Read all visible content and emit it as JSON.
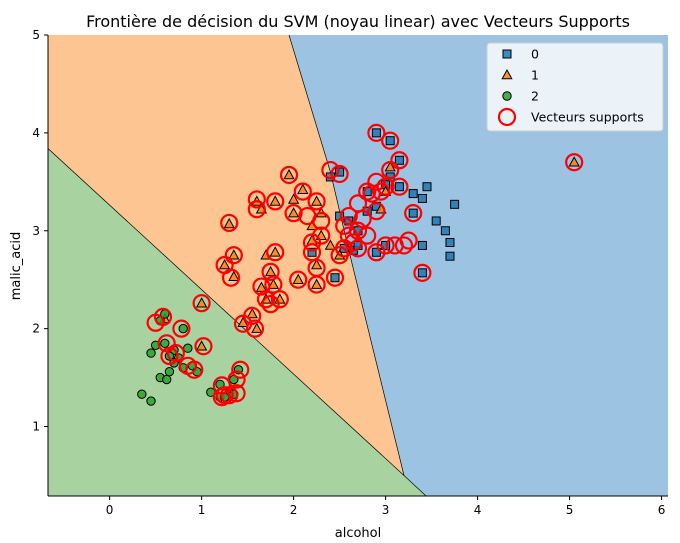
{
  "chart_data": {
    "type": "scatter",
    "title": "Frontière de décision du SVM (noyau linear) avec Vecteurs Supports",
    "xlabel": "alcohol",
    "ylabel": "malic_acid",
    "xlim": [
      -0.67,
      6.07
    ],
    "ylim": [
      0.29,
      5.0
    ],
    "xticks": [
      0,
      1,
      2,
      3,
      4,
      5,
      6
    ],
    "yticks": [
      1,
      2,
      3,
      4,
      5
    ],
    "x_tick_labels": [
      "0",
      "1",
      "2",
      "3",
      "4",
      "5",
      "6"
    ],
    "y_tick_labels": [
      "1",
      "2",
      "3",
      "4",
      "5"
    ],
    "legend_position": "top-right",
    "regions": [
      {
        "class": "0",
        "color": "#9dc3e2",
        "polygon": [
          [
            1.95,
            5.0
          ],
          [
            6.07,
            5.0
          ],
          [
            6.07,
            0.29
          ],
          [
            3.44,
            0.29
          ],
          [
            3.2,
            0.5
          ],
          [
            2.6,
            2.8
          ],
          [
            2.4,
            3.6
          ]
        ]
      },
      {
        "class": "1",
        "color": "#fdc591",
        "polygon": [
          [
            -0.67,
            5.0
          ],
          [
            1.95,
            5.0
          ],
          [
            2.4,
            3.6
          ],
          [
            2.6,
            2.8
          ],
          [
            3.2,
            0.5
          ],
          [
            -0.67,
            3.84
          ]
        ]
      },
      {
        "class": "2",
        "color": "#a8d3a0",
        "polygon": [
          [
            -0.67,
            3.84
          ],
          [
            3.2,
            0.5
          ],
          [
            3.44,
            0.29
          ],
          [
            -0.67,
            0.29
          ]
        ]
      }
    ],
    "boundaries": [
      [
        [
          1.95,
          5.0
        ],
        [
          2.4,
          3.6
        ],
        [
          2.6,
          2.8
        ],
        [
          3.2,
          0.5
        ],
        [
          3.44,
          0.29
        ]
      ],
      [
        [
          -0.67,
          3.84
        ],
        [
          3.2,
          0.5
        ]
      ]
    ],
    "series": [
      {
        "name": "0",
        "marker": "square",
        "color": "#1f77b4",
        "points": [
          [
            2.4,
            3.55
          ],
          [
            2.5,
            3.6
          ],
          [
            2.8,
            3.4
          ],
          [
            2.9,
            4.0
          ],
          [
            3.05,
            3.92
          ],
          [
            3.15,
            3.72
          ],
          [
            3.05,
            3.55
          ],
          [
            3.0,
            3.47
          ],
          [
            3.15,
            3.45
          ],
          [
            3.45,
            3.45
          ],
          [
            3.3,
            3.38
          ],
          [
            3.4,
            3.33
          ],
          [
            3.75,
            3.27
          ],
          [
            3.3,
            3.18
          ],
          [
            3.55,
            3.1
          ],
          [
            3.65,
            3.0
          ],
          [
            3.7,
            2.88
          ],
          [
            3.7,
            2.74
          ],
          [
            3.4,
            2.85
          ],
          [
            3.4,
            2.57
          ],
          [
            2.55,
            2.82
          ],
          [
            2.65,
            2.8
          ],
          [
            2.7,
            2.85
          ],
          [
            2.9,
            2.78
          ],
          [
            3.0,
            2.85
          ],
          [
            2.45,
            2.52
          ],
          [
            2.2,
            2.78
          ],
          [
            2.5,
            3.15
          ],
          [
            2.6,
            3.1
          ],
          [
            2.7,
            3.0
          ],
          [
            2.8,
            3.2
          ],
          [
            2.9,
            3.25
          ]
        ]
      },
      {
        "name": "1",
        "marker": "triangle",
        "color": "#ff7f0e",
        "points": [
          [
            1.95,
            3.57
          ],
          [
            2.1,
            3.42
          ],
          [
            2.0,
            3.32
          ],
          [
            1.8,
            3.3
          ],
          [
            1.6,
            3.3
          ],
          [
            1.65,
            3.22
          ],
          [
            2.25,
            3.3
          ],
          [
            2.3,
            3.18
          ],
          [
            2.0,
            3.18
          ],
          [
            2.2,
            3.05
          ],
          [
            2.3,
            2.95
          ],
          [
            1.3,
            3.07
          ],
          [
            1.8,
            2.78
          ],
          [
            1.7,
            2.75
          ],
          [
            1.35,
            2.75
          ],
          [
            1.25,
            2.65
          ],
          [
            1.35,
            2.53
          ],
          [
            1.75,
            2.58
          ],
          [
            1.78,
            2.45
          ],
          [
            1.65,
            2.42
          ],
          [
            1.7,
            2.3
          ],
          [
            1.85,
            2.3
          ],
          [
            1.55,
            2.15
          ],
          [
            1.6,
            2.0
          ],
          [
            1.45,
            2.06
          ],
          [
            1.0,
            2.26
          ],
          [
            1.0,
            1.82
          ],
          [
            2.25,
            2.65
          ],
          [
            2.05,
            2.5
          ],
          [
            2.25,
            2.45
          ],
          [
            2.4,
            2.85
          ],
          [
            2.2,
            2.9
          ],
          [
            3.05,
            3.65
          ],
          [
            5.05,
            3.7
          ],
          [
            3.0,
            3.4
          ],
          [
            2.95,
            3.22
          ],
          [
            2.5,
            2.75
          ],
          [
            0.6,
            2.1
          ]
        ]
      },
      {
        "name": "2",
        "marker": "circle",
        "color": "#2ca02c",
        "points": [
          [
            0.55,
            2.08
          ],
          [
            0.6,
            2.15
          ],
          [
            0.8,
            2.0
          ],
          [
            0.5,
            1.83
          ],
          [
            0.6,
            1.85
          ],
          [
            0.7,
            1.78
          ],
          [
            0.85,
            1.8
          ],
          [
            0.65,
            1.72
          ],
          [
            0.75,
            1.7
          ],
          [
            0.45,
            1.75
          ],
          [
            0.7,
            1.65
          ],
          [
            0.8,
            1.6
          ],
          [
            0.9,
            1.62
          ],
          [
            0.65,
            1.56
          ],
          [
            0.95,
            1.56
          ],
          [
            0.55,
            1.5
          ],
          [
            0.62,
            1.48
          ],
          [
            0.35,
            1.33
          ],
          [
            0.45,
            1.26
          ],
          [
            1.1,
            1.35
          ],
          [
            1.2,
            1.43
          ],
          [
            1.2,
            1.3
          ],
          [
            1.3,
            1.35
          ],
          [
            1.35,
            1.33
          ],
          [
            1.4,
            1.58
          ],
          [
            1.35,
            1.48
          ],
          [
            1.25,
            1.3
          ]
        ]
      }
    ],
    "support_vectors": {
      "name": "Vecteurs supports",
      "color": "#ff0000",
      "points": [
        [
          2.4,
          3.62
        ],
        [
          2.5,
          3.58
        ],
        [
          2.9,
          4.0
        ],
        [
          3.05,
          3.92
        ],
        [
          3.15,
          3.72
        ],
        [
          3.05,
          3.62
        ],
        [
          2.8,
          3.4
        ],
        [
          2.9,
          3.5
        ],
        [
          3.0,
          3.45
        ],
        [
          3.15,
          3.45
        ],
        [
          2.85,
          3.38
        ],
        [
          2.95,
          3.4
        ],
        [
          2.7,
          3.28
        ],
        [
          2.9,
          3.2
        ],
        [
          3.3,
          3.18
        ],
        [
          2.6,
          3.15
        ],
        [
          2.75,
          3.12
        ],
        [
          2.55,
          3.05
        ],
        [
          2.7,
          3.0
        ],
        [
          2.8,
          2.95
        ],
        [
          2.6,
          2.95
        ],
        [
          2.65,
          2.88
        ],
        [
          2.55,
          2.82
        ],
        [
          2.7,
          2.82
        ],
        [
          2.5,
          2.75
        ],
        [
          2.9,
          2.78
        ],
        [
          3.0,
          2.85
        ],
        [
          3.1,
          2.85
        ],
        [
          3.2,
          2.85
        ],
        [
          3.25,
          2.9
        ],
        [
          3.4,
          2.57
        ],
        [
          2.45,
          2.52
        ],
        [
          2.2,
          2.78
        ],
        [
          1.95,
          3.57
        ],
        [
          2.1,
          3.4
        ],
        [
          1.6,
          3.32
        ],
        [
          1.6,
          3.22
        ],
        [
          1.8,
          3.3
        ],
        [
          2.0,
          3.18
        ],
        [
          2.15,
          3.15
        ],
        [
          2.25,
          3.3
        ],
        [
          2.3,
          3.1
        ],
        [
          2.2,
          2.88
        ],
        [
          2.3,
          2.95
        ],
        [
          1.3,
          3.08
        ],
        [
          1.8,
          2.78
        ],
        [
          1.35,
          2.75
        ],
        [
          1.25,
          2.65
        ],
        [
          1.32,
          2.52
        ],
        [
          1.75,
          2.58
        ],
        [
          1.78,
          2.45
        ],
        [
          1.65,
          2.43
        ],
        [
          1.7,
          2.3
        ],
        [
          1.85,
          2.3
        ],
        [
          1.75,
          2.25
        ],
        [
          1.55,
          2.13
        ],
        [
          1.45,
          2.05
        ],
        [
          1.58,
          2.0
        ],
        [
          1.0,
          2.26
        ],
        [
          2.25,
          2.62
        ],
        [
          2.05,
          2.5
        ],
        [
          2.25,
          2.45
        ],
        [
          5.05,
          3.7
        ],
        [
          0.5,
          2.06
        ],
        [
          0.58,
          2.12
        ],
        [
          0.62,
          1.85
        ],
        [
          0.72,
          1.75
        ],
        [
          0.65,
          1.72
        ],
        [
          0.85,
          1.62
        ],
        [
          0.92,
          1.58
        ],
        [
          1.02,
          1.82
        ],
        [
          0.78,
          2.0
        ],
        [
          1.22,
          1.42
        ],
        [
          1.25,
          1.32
        ],
        [
          1.22,
          1.3
        ],
        [
          1.38,
          1.48
        ],
        [
          1.38,
          1.34
        ],
        [
          1.42,
          1.58
        ],
        [
          1.3,
          1.32
        ]
      ]
    }
  }
}
